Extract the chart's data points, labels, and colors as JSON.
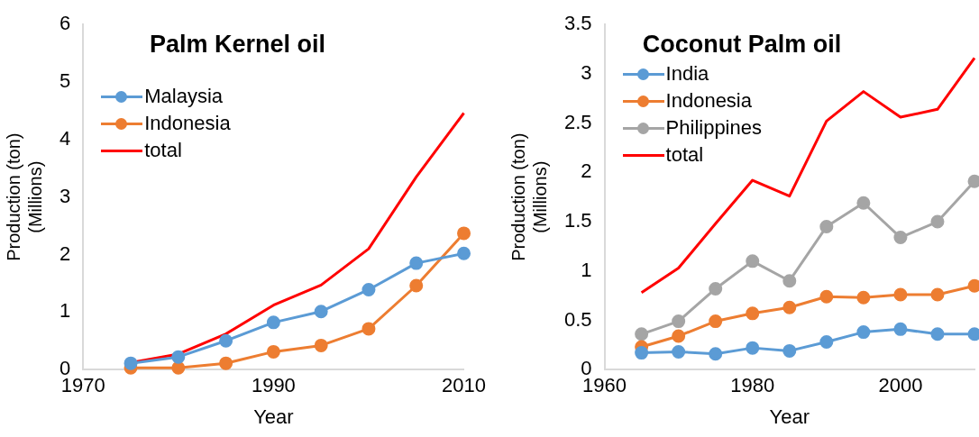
{
  "chart_data": [
    {
      "type": "line",
      "title": "Palm Kernel oil",
      "xlabel": "Year",
      "ylabel": "Production (ton)\n(Millions)",
      "x": [
        1975,
        1980,
        1985,
        1990,
        1995,
        2000,
        2005,
        2010
      ],
      "series": [
        {
          "name": "Malaysia",
          "color": "#5b9bd5",
          "marker": "circle",
          "values": [
            0.11,
            0.22,
            0.5,
            0.82,
            1.01,
            1.39,
            1.85,
            2.02
          ]
        },
        {
          "name": "Indonesia",
          "color": "#ed7d31",
          "marker": "circle",
          "values": [
            0.03,
            0.03,
            0.11,
            0.31,
            0.42,
            0.71,
            1.46,
            2.37
          ]
        },
        {
          "name": "total",
          "color": "#ff0000",
          "marker": "none",
          "values": [
            0.12,
            0.27,
            0.62,
            1.12,
            1.47,
            2.1,
            3.35,
            4.46
          ]
        }
      ],
      "xlim": [
        1970,
        2010
      ],
      "xticks": [
        1970,
        1990,
        2010
      ],
      "ylim": [
        0,
        6
      ],
      "yticks": [
        0,
        1,
        2,
        3,
        4,
        5,
        6
      ],
      "grid": false,
      "legend": "top left"
    },
    {
      "type": "line",
      "title": "Coconut Palm oil",
      "xlabel": "Year",
      "ylabel": "Production (ton)\n(Millions)",
      "x": [
        1965,
        1970,
        1975,
        1980,
        1985,
        1990,
        1995,
        2000,
        2005,
        2010
      ],
      "series": [
        {
          "name": "India",
          "color": "#5b9bd5",
          "marker": "circle",
          "values": [
            0.17,
            0.18,
            0.16,
            0.22,
            0.19,
            0.28,
            0.38,
            0.41,
            0.36,
            0.36
          ]
        },
        {
          "name": "Indonesia",
          "color": "#ed7d31",
          "marker": "circle",
          "values": [
            0.23,
            0.34,
            0.49,
            0.57,
            0.63,
            0.74,
            0.73,
            0.76,
            0.76,
            0.85
          ]
        },
        {
          "name": "Philippines",
          "color": "#a5a5a5",
          "marker": "circle",
          "values": [
            0.36,
            0.49,
            0.82,
            1.1,
            0.9,
            1.45,
            1.69,
            1.34,
            1.5,
            1.91
          ]
        },
        {
          "name": "total",
          "color": "#ff0000",
          "marker": "none",
          "values": [
            0.78,
            1.03,
            1.48,
            1.92,
            1.76,
            2.52,
            2.82,
            2.56,
            2.64,
            3.16
          ]
        }
      ],
      "xlim": [
        1960,
        2010
      ],
      "xticks": [
        1960,
        1980,
        2000
      ],
      "ylim": [
        0,
        3.5
      ],
      "yticks": [
        0,
        0.5,
        1,
        1.5,
        2,
        2.5,
        3,
        3.5
      ],
      "grid": false,
      "legend": "top left"
    }
  ]
}
